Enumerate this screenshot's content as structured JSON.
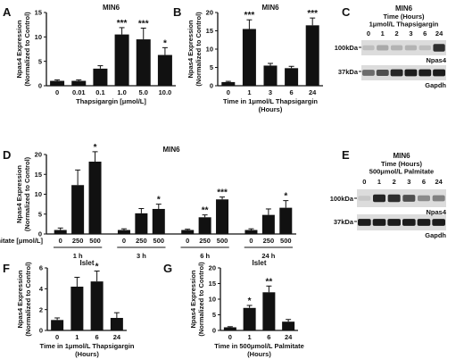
{
  "chart_data": [
    {
      "id": "A",
      "letter": "A",
      "type": "bar",
      "title": "MIN6",
      "ylabel": [
        "Npas4 Expression",
        "(Normalized to Control)"
      ],
      "xlabel": [
        "Thapsigargin [μmol/L]"
      ],
      "categories": [
        "0",
        "0.01",
        "0.1",
        "1.0",
        "5.0",
        "10.0"
      ],
      "values": [
        1.0,
        1.0,
        3.5,
        10.5,
        9.5,
        6.3
      ],
      "errors": [
        0.2,
        0.2,
        0.6,
        1.4,
        2.3,
        1.5
      ],
      "sig": [
        "",
        "",
        "",
        "***",
        "***",
        "*"
      ],
      "ylim": [
        0,
        15
      ],
      "yticks": [
        0,
        5,
        10,
        15
      ]
    },
    {
      "id": "B",
      "letter": "B",
      "type": "bar",
      "title": "MIN6",
      "ylabel": [
        "Npas4 Expression",
        "(Normalized to Control)"
      ],
      "xlabel": [
        "Time in 1μmol/L Thapsigargin",
        "(Hours)"
      ],
      "categories": [
        "0",
        "1",
        "3",
        "6",
        "24"
      ],
      "values": [
        1.0,
        15.5,
        5.5,
        4.8,
        16.5
      ],
      "errors": [
        0.2,
        2.5,
        0.6,
        0.5,
        2.0
      ],
      "sig": [
        "",
        "***",
        "",
        "",
        "***"
      ],
      "ylim": [
        0,
        20
      ],
      "yticks": [
        0,
        5,
        10,
        15,
        20
      ]
    },
    {
      "id": "D",
      "letter": "D",
      "type": "bar",
      "title": "MIN6",
      "ylabel": [
        "Npas4 Expression",
        "(Normalized to Control)"
      ],
      "xlabel_left": "Palmitate [μmol/L]",
      "categories": [
        "0",
        "250",
        "500",
        "0",
        "250",
        "500",
        "0",
        "250",
        "500",
        "0",
        "250",
        "500"
      ],
      "groups": [
        "1 h",
        "3 h",
        "6 h",
        "24 h"
      ],
      "values": [
        1.0,
        12.3,
        18.2,
        1.0,
        5.2,
        6.3,
        1.0,
        4.2,
        8.7,
        1.0,
        4.8,
        6.6
      ],
      "errors": [
        0.5,
        3.8,
        2.5,
        0.3,
        1.2,
        1.2,
        0.2,
        0.6,
        0.6,
        0.3,
        1.5,
        1.8
      ],
      "sig": [
        "",
        "",
        "*",
        "",
        "",
        "*",
        "",
        "**",
        "***",
        "",
        "",
        "*"
      ],
      "ylim": [
        0,
        20
      ],
      "yticks": [
        0,
        5,
        10,
        15,
        20
      ]
    },
    {
      "id": "F",
      "letter": "F",
      "type": "bar",
      "title": "Islet",
      "ylabel": [
        "Npas4 Expression",
        "(Normalized to Control)"
      ],
      "xlabel": [
        "Time in 1μmol/L Thapsigargin",
        "(Hours)"
      ],
      "categories": [
        "0",
        "1",
        "6",
        "24"
      ],
      "values": [
        1.0,
        4.2,
        4.7,
        1.2
      ],
      "errors": [
        0.2,
        0.9,
        1.0,
        0.5
      ],
      "sig": [
        "",
        "",
        "*",
        ""
      ],
      "ylim": [
        0,
        6
      ],
      "yticks": [
        0,
        2,
        4,
        6
      ]
    },
    {
      "id": "G",
      "letter": "G",
      "type": "bar",
      "title": "Islet",
      "ylabel": [
        "Npas4 Expression",
        "(Normalized to Control)"
      ],
      "xlabel": [
        "Time in 500μmol/L Palmitate",
        "(Hours)"
      ],
      "categories": [
        "0",
        "1",
        "6",
        "24"
      ],
      "values": [
        1.0,
        7.2,
        12.2,
        2.8
      ],
      "errors": [
        0.2,
        0.8,
        2.0,
        0.7
      ],
      "sig": [
        "",
        "*",
        "**",
        ""
      ],
      "ylim": [
        0,
        20
      ],
      "yticks": [
        0,
        5,
        10,
        15,
        20
      ]
    }
  ],
  "blots": [
    {
      "id": "C",
      "letter": "C",
      "title": "MIN6",
      "subtitle": [
        "Time (Hours)",
        "1μmol/L Thapsigargin"
      ],
      "lanes": [
        "0",
        "1",
        "2",
        "3",
        "6",
        "24"
      ],
      "markers": [
        "100kDa",
        "37kDa"
      ],
      "bands": [
        "Npas4",
        "Gapdh"
      ],
      "npas4": [
        0.15,
        0.25,
        0.2,
        0.2,
        0.15,
        0.85
      ],
      "gapdh": [
        0.55,
        0.7,
        0.9,
        0.95,
        0.95,
        0.95
      ]
    },
    {
      "id": "E",
      "letter": "E",
      "title": "MIN6",
      "subtitle": [
        "Time (Hours)",
        "500μmol/L Palmitate"
      ],
      "lanes": [
        "0",
        "1",
        "2",
        "3",
        "6",
        "24"
      ],
      "markers": [
        "100kDa",
        "37kDa"
      ],
      "bands": [
        "Npas4",
        "Gapdh"
      ],
      "npas4": [
        0.1,
        0.9,
        0.85,
        0.7,
        0.4,
        0.45
      ],
      "gapdh": [
        0.95,
        0.95,
        0.95,
        0.95,
        0.95,
        0.95
      ]
    }
  ]
}
